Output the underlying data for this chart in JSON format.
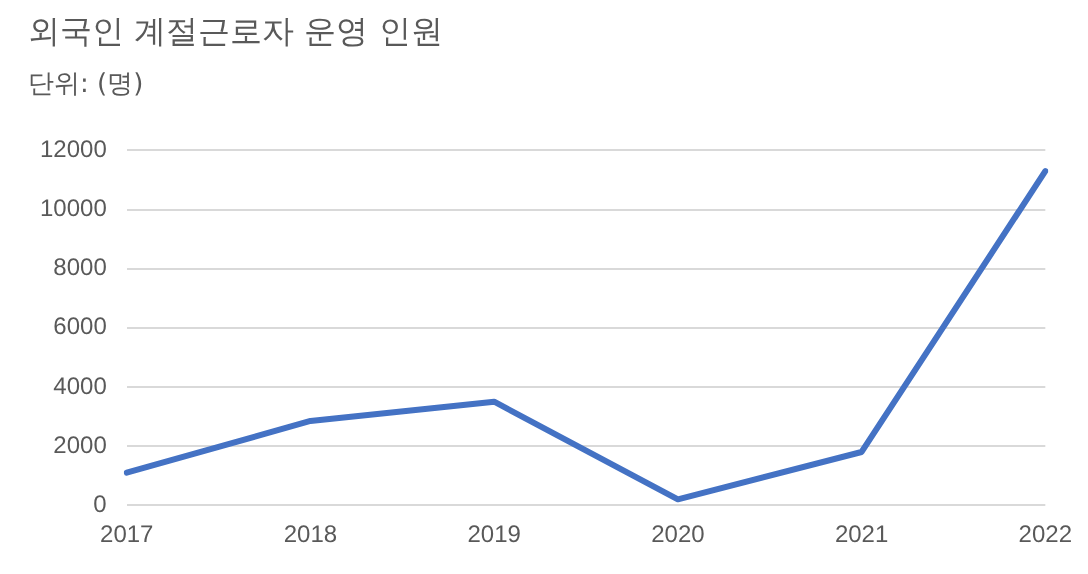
{
  "chart_data": {
    "type": "line",
    "title": "외국인 계절근로자 운영 인원",
    "subtitle": "단위: (명)",
    "categories": [
      "2017",
      "2018",
      "2019",
      "2020",
      "2021",
      "2022"
    ],
    "values": [
      1100,
      2850,
      3500,
      200,
      1800,
      11300
    ],
    "color": "#4472c4",
    "ylim": [
      0,
      12000
    ],
    "yticks": [
      0,
      2000,
      4000,
      6000,
      8000,
      10000,
      12000
    ],
    "grid": "y",
    "legend": false,
    "marker": "none",
    "line_style": "solid"
  }
}
